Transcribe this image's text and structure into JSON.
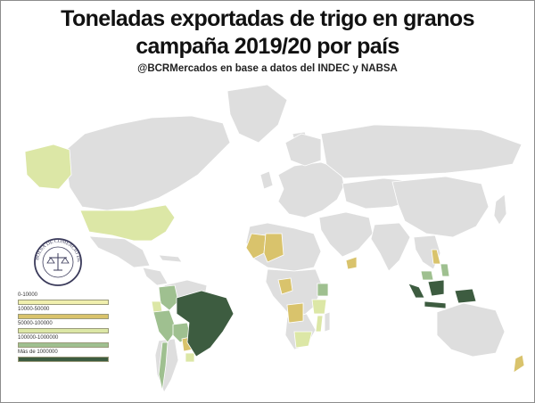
{
  "title_line1": "Toneladas exportadas de trigo en granos",
  "title_line2": "campaña 2019/20 por país",
  "subtitle": "@BCRMercados  en base a datos del INDEC y NABSA",
  "seal_text": "BOLSA DE COMERCIO DE ROSARIO",
  "legend": [
    {
      "label": "0-10000",
      "color": "#f0efae"
    },
    {
      "label": "10000-50000",
      "color": "#d9c36c"
    },
    {
      "label": "50000-100000",
      "color": "#dce7a6"
    },
    {
      "label": "100000-1000000",
      "color": "#9fc090"
    },
    {
      "label": "Más de 1000000",
      "color": "#3d5c40"
    }
  ],
  "colors": {
    "land": "#dedede",
    "border": "#ffffff",
    "ocean": "#ffffff"
  }
}
